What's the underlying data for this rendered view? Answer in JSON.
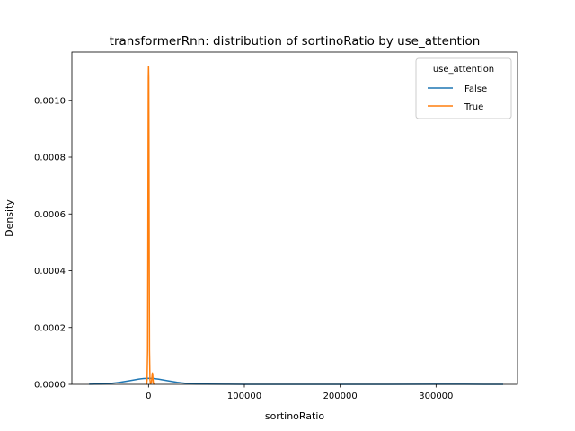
{
  "chart_data": {
    "type": "line",
    "title": "transformerRnn: distribution of sortinoRatio by use_attention",
    "xlabel": "sortinoRatio",
    "ylabel": "Density",
    "xlim": [
      -80000,
      385000
    ],
    "ylim": [
      0,
      0.00117
    ],
    "xticks": [
      0,
      100000,
      200000,
      300000
    ],
    "xtick_labels": [
      "0",
      "100000",
      "200000",
      "300000"
    ],
    "yticks": [
      0,
      0.0002,
      0.0004,
      0.0006,
      0.0008,
      0.001
    ],
    "ytick_labels": [
      "0.0000",
      "0.0002",
      "0.0004",
      "0.0006",
      "0.0008",
      "0.0010"
    ],
    "grid": false,
    "legend": {
      "title": "use_attention",
      "placement": "top-right",
      "entries": [
        "False",
        "True"
      ]
    },
    "series": [
      {
        "name": "False",
        "color": "#1f77b4",
        "x": [
          -62000,
          -50000,
          -40000,
          -30000,
          -20000,
          -10000,
          -5000,
          0,
          5000,
          10000,
          20000,
          30000,
          40000,
          50000,
          60000,
          80000,
          100000,
          150000,
          200000,
          250000,
          300000,
          330000,
          350000,
          370000
        ],
        "y": [
          3e-07,
          1.2e-06,
          3.2e-06,
          7e-06,
          1.28e-05,
          1.86e-05,
          2.05e-05,
          2.12e-05,
          2.05e-05,
          1.86e-05,
          1.28e-05,
          7e-06,
          3.2e-06,
          1.2e-06,
          6e-07,
          3e-07,
          2e-07,
          2e-07,
          2e-07,
          2e-07,
          3e-07,
          3e-07,
          2e-07,
          1e-07
        ]
      },
      {
        "name": "True",
        "color": "#ff7f0e",
        "x": [
          -3000,
          -2000,
          -1500,
          -1000,
          -700,
          -400,
          -200,
          0,
          200,
          400,
          700,
          1000,
          1500,
          2000,
          3000,
          3500,
          4000,
          4300,
          4600,
          5000,
          5500,
          6000
        ],
        "y": [
          0,
          5e-07,
          1.5e-05,
          0.00012,
          0.00045,
          0.00088,
          0.00108,
          0.00112,
          0.00108,
          0.00088,
          0.00045,
          0.00012,
          1.5e-05,
          2e-06,
          5e-06,
          2.5e-05,
          4e-05,
          3.5e-05,
          2e-05,
          5e-06,
          1e-06,
          0
        ]
      }
    ]
  }
}
